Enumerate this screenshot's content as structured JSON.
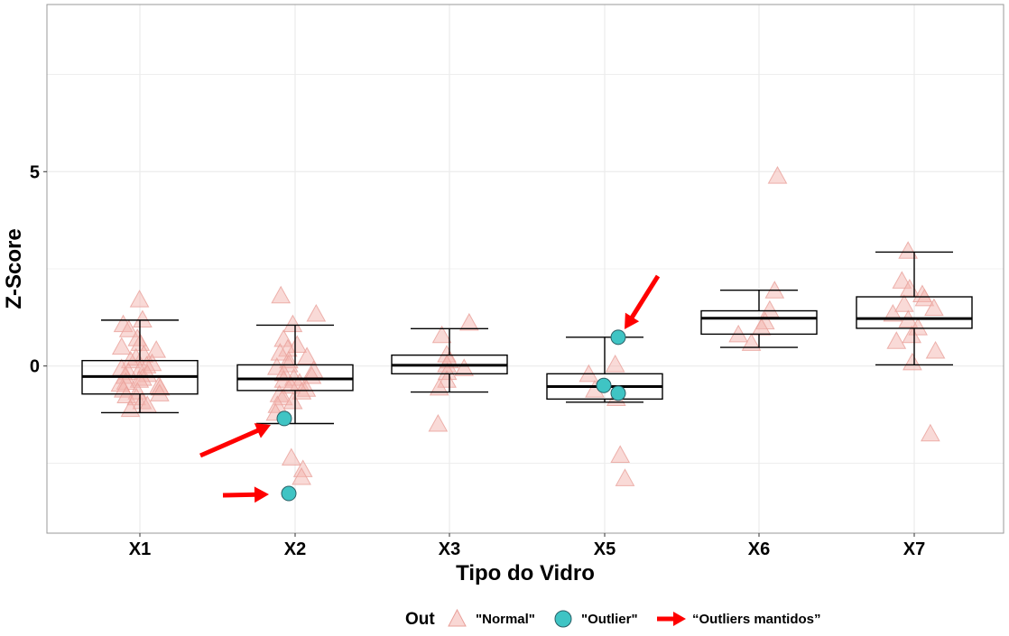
{
  "chart_data": {
    "type": "boxplot",
    "xlabel": "Tipo do Vidro",
    "ylabel": "Z-Score",
    "categories": [
      "X1",
      "X2",
      "X3",
      "X5",
      "X6",
      "X7"
    ],
    "ylim": [
      -4.3,
      9.3
    ],
    "yticks": [
      0,
      5
    ],
    "grid": true,
    "legend": {
      "title": "Out",
      "position": "bottom",
      "items": [
        {
          "label": "\"Normal\"",
          "shape": "triangle"
        },
        {
          "label": "\"Outlier\"",
          "shape": "circle"
        },
        {
          "label": "“Outliers mantidos”",
          "shape": "red-arrow"
        }
      ]
    },
    "boxes": [
      {
        "category": "X1",
        "whisker_low": -1.2,
        "q1": -0.72,
        "median": -0.27,
        "q3": 0.14,
        "whisker_high": 1.18
      },
      {
        "category": "X2",
        "whisker_low": -1.48,
        "q1": -0.63,
        "median": -0.33,
        "q3": 0.03,
        "whisker_high": 1.05
      },
      {
        "category": "X3",
        "whisker_low": -0.67,
        "q1": -0.2,
        "median": 0.02,
        "q3": 0.28,
        "whisker_high": 0.96
      },
      {
        "category": "X5",
        "whisker_low": -0.93,
        "q1": -0.85,
        "median": -0.53,
        "q3": -0.2,
        "whisker_high": 0.74
      },
      {
        "category": "X6",
        "whisker_low": 0.48,
        "q1": 0.82,
        "median": 1.23,
        "q3": 1.42,
        "whisker_high": 1.95
      },
      {
        "category": "X7",
        "whisker_low": 0.03,
        "q1": 0.97,
        "median": 1.22,
        "q3": 1.78,
        "whisker_high": 2.93
      }
    ],
    "normal_points": [
      {
        "category": "X1",
        "y": [
          1.72,
          1.2,
          1.08,
          0.95,
          0.72,
          0.6,
          0.5,
          0.42,
          0.3,
          0.22,
          0.15,
          0.08,
          0.02,
          -0.05,
          -0.1,
          -0.15,
          -0.2,
          -0.25,
          -0.3,
          -0.35,
          -0.4,
          -0.45,
          -0.5,
          -0.55,
          -0.6,
          -0.65,
          -0.7,
          -0.75,
          -0.8,
          -0.9,
          -1.0,
          -1.1
        ]
      },
      {
        "category": "X2",
        "y": [
          1.82,
          1.35,
          1.08,
          0.7,
          0.55,
          0.45,
          0.35,
          0.25,
          0.15,
          0.05,
          -0.02,
          -0.1,
          -0.18,
          -0.25,
          -0.3,
          -0.35,
          -0.42,
          -0.5,
          -0.58,
          -0.65,
          -0.72,
          -0.8,
          -0.9,
          -1.0,
          -1.2,
          -2.35,
          -2.65,
          -2.85
        ]
      },
      {
        "category": "X3",
        "y": [
          1.12,
          0.8,
          0.3,
          0.15,
          0.05,
          -0.05,
          -0.15,
          -0.35,
          -0.55,
          -1.48
        ]
      },
      {
        "category": "X5",
        "y": [
          0.05,
          -0.2,
          -0.6,
          -0.82,
          -2.28,
          -2.88
        ]
      },
      {
        "category": "X6",
        "y": [
          4.9,
          1.95,
          1.45,
          1.15,
          1.0,
          0.82,
          0.6
        ]
      },
      {
        "category": "X7",
        "y": [
          2.97,
          2.2,
          2.0,
          1.85,
          1.75,
          1.6,
          1.5,
          1.35,
          1.2,
          1.0,
          0.8,
          0.65,
          0.4,
          0.1,
          -1.73
        ]
      }
    ],
    "outlier_points": [
      {
        "category": "X2",
        "y": -1.35
      },
      {
        "category": "X2",
        "y": -3.28
      },
      {
        "category": "X5",
        "y": 0.74
      },
      {
        "category": "X5",
        "y": -0.5
      },
      {
        "category": "X5",
        "y": -0.7
      }
    ],
    "annotations": [
      {
        "type": "red-arrow",
        "target": "X2 outlier at -1.35"
      },
      {
        "type": "red-arrow",
        "target": "X2 outlier at -3.28"
      },
      {
        "type": "red-arrow",
        "target": "X5 outlier at 0.74"
      }
    ],
    "colors": {
      "normal_fill": "#f4b6b0",
      "normal_stroke": "#e9a09a",
      "outlier_fill": "#3fc4c4",
      "outlier_stroke": "#2a5f66",
      "arrow": "#ff0000",
      "grid": "#ebebeb",
      "panel_border": "#999999"
    }
  }
}
